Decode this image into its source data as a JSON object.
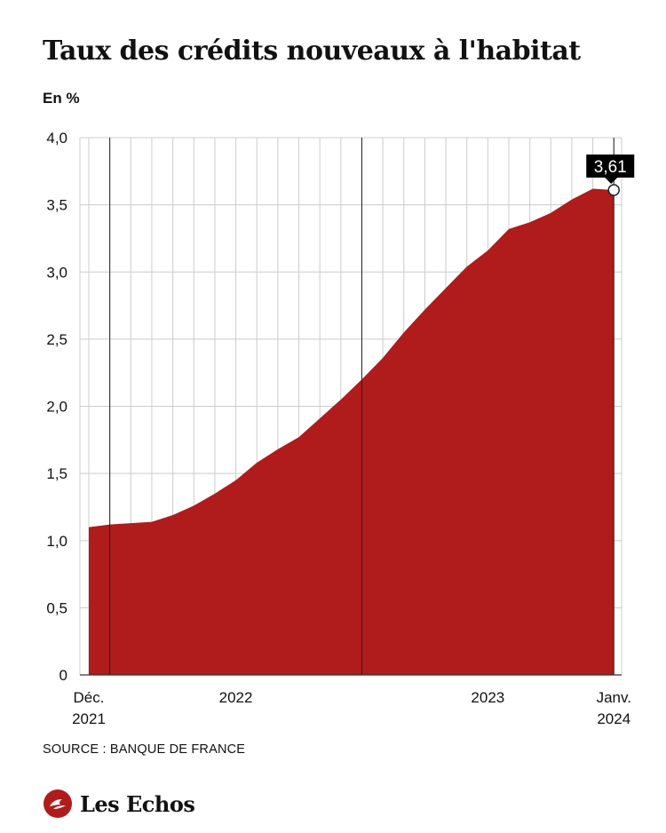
{
  "header": {
    "title": "Taux des crédits nouveaux à l'habitat",
    "unit": "En %"
  },
  "footer": {
    "source": "SOURCE : BANQUE DE FRANCE",
    "brand": "Les Echos"
  },
  "colors": {
    "area_fill": "#b01b1b",
    "grid": "#cccccc",
    "year_line": "#222222",
    "label_bg": "#000000"
  },
  "chart_data": {
    "type": "area",
    "x": [
      "2021-12",
      "2022-01",
      "2022-02",
      "2022-03",
      "2022-04",
      "2022-05",
      "2022-06",
      "2022-07",
      "2022-08",
      "2022-09",
      "2022-10",
      "2022-11",
      "2022-12",
      "2023-01",
      "2023-02",
      "2023-03",
      "2023-04",
      "2023-05",
      "2023-06",
      "2023-07",
      "2023-08",
      "2023-09",
      "2023-10",
      "2023-11",
      "2023-12",
      "2024-01"
    ],
    "series": [
      {
        "values": [
          1.1,
          1.12,
          1.13,
          1.14,
          1.19,
          1.26,
          1.35,
          1.45,
          1.58,
          1.68,
          1.77,
          1.91,
          2.05,
          2.2,
          2.36,
          2.55,
          2.72,
          2.88,
          3.04,
          3.16,
          3.32,
          3.37,
          3.44,
          3.54,
          3.62,
          3.61
        ]
      }
    ],
    "ylim": [
      0,
      4.0
    ],
    "yticks": [
      "0",
      "0,5",
      "1,0",
      "1,5",
      "2,0",
      "2,5",
      "3,0",
      "3,5",
      "4,0"
    ],
    "xtick_labels": [
      {
        "line1": "Déc.",
        "line2": "2021"
      },
      {
        "line1": "2022",
        "line2": ""
      },
      {
        "line1": "2023",
        "line2": ""
      },
      {
        "line1": "Janv.",
        "line2": "2024"
      }
    ],
    "grid": true,
    "last_value_label": "3,61"
  }
}
